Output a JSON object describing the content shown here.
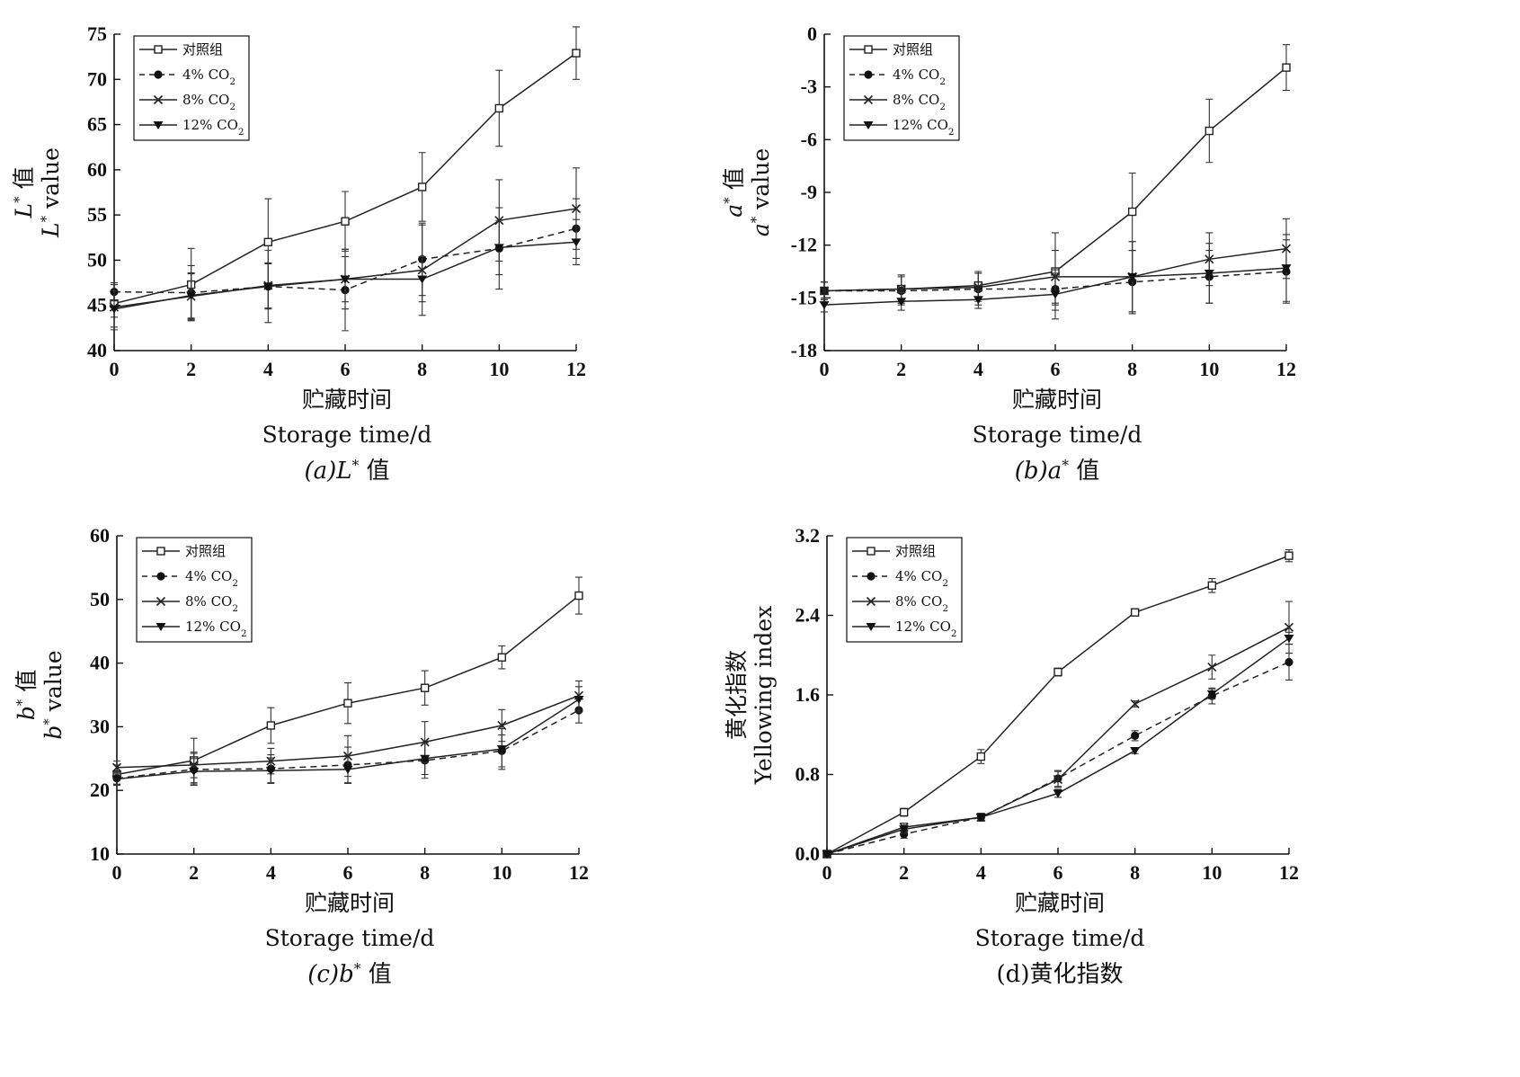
{
  "chart_data": [
    {
      "type": "line",
      "caption": "(a)L* 值",
      "xlabel": "贮藏时间",
      "xlabel_en": "Storage  time/d",
      "ylabel": "L* 值",
      "ylabel_en": "L* value",
      "xlim": [
        0,
        12
      ],
      "ylim": [
        40,
        75
      ],
      "xticks": [
        0,
        2,
        4,
        6,
        8,
        10,
        12
      ],
      "yticks": [
        40,
        45,
        50,
        55,
        60,
        65,
        70,
        75
      ],
      "legend_position": "top-left",
      "x": [
        0,
        2,
        4,
        6,
        8,
        10,
        12
      ],
      "series": [
        {
          "name": "对照组",
          "marker": "square",
          "dash": "solid",
          "values": [
            45.2,
            47.3,
            52.0,
            54.3,
            58.1,
            66.8,
            72.9
          ],
          "errors": [
            1.5,
            4.0,
            4.8,
            3.3,
            3.8,
            4.2,
            2.9
          ]
        },
        {
          "name": "4% CO2",
          "marker": "circle",
          "dash": "dashed",
          "values": [
            46.5,
            46.4,
            47.1,
            46.7,
            50.1,
            51.3,
            53.5
          ],
          "errors": [
            1.0,
            3.0,
            4.0,
            4.5,
            4.0,
            4.5,
            3.3
          ]
        },
        {
          "name": "8% CO2",
          "marker": "x",
          "dash": "solid",
          "values": [
            44.8,
            46.0,
            47.2,
            47.9,
            48.9,
            54.4,
            55.7
          ],
          "errors": [
            2.5,
            2.5,
            2.5,
            3.3,
            5.0,
            4.5,
            4.5
          ]
        },
        {
          "name": "12% CO2",
          "marker": "triangle",
          "dash": "solid",
          "values": [
            44.6,
            46.1,
            47.1,
            47.9,
            47.9,
            51.4,
            52.0
          ],
          "errors": [
            2.0,
            2.5,
            2.5,
            2.5,
            2.5,
            3.0,
            2.5
          ]
        }
      ]
    },
    {
      "type": "line",
      "caption": "(b)a* 值",
      "xlabel": "贮藏时间",
      "xlabel_en": "Storage  time/d",
      "ylabel": "a* 值",
      "ylabel_en": "a* value",
      "xlim": [
        0,
        12
      ],
      "ylim": [
        -18,
        0
      ],
      "xticks": [
        0,
        2,
        4,
        6,
        8,
        10,
        12
      ],
      "yticks": [
        -18,
        -15,
        -12,
        -9,
        -6,
        -3,
        0
      ],
      "legend_position": "top-left",
      "x": [
        0,
        2,
        4,
        6,
        8,
        10,
        12
      ],
      "series": [
        {
          "name": "对照组",
          "marker": "square",
          "dash": "solid",
          "values": [
            -14.6,
            -14.5,
            -14.3,
            -13.5,
            -10.1,
            -5.5,
            -1.9
          ],
          "errors": [
            0.5,
            0.8,
            0.8,
            2.2,
            2.2,
            1.8,
            1.3
          ]
        },
        {
          "name": "4% CO2",
          "marker": "circle",
          "dash": "dashed",
          "values": [
            -14.6,
            -14.6,
            -14.5,
            -14.5,
            -14.1,
            -13.8,
            -13.5
          ],
          "errors": [
            0.5,
            0.8,
            0.9,
            0.9,
            1.8,
            1.5,
            1.8
          ]
        },
        {
          "name": "8% CO2",
          "marker": "x",
          "dash": "solid",
          "values": [
            -14.6,
            -14.5,
            -14.4,
            -13.8,
            -13.8,
            -12.8,
            -12.2
          ],
          "errors": [
            0.5,
            0.8,
            0.8,
            1.5,
            2.0,
            1.5,
            1.7
          ]
        },
        {
          "name": "12% CO2",
          "marker": "triangle",
          "dash": "solid",
          "values": [
            -15.4,
            -15.2,
            -15.1,
            -14.8,
            -13.8,
            -13.6,
            -13.3
          ],
          "errors": [
            0.4,
            0.5,
            0.5,
            1.4,
            2.0,
            1.7,
            1.9
          ]
        }
      ]
    },
    {
      "type": "line",
      "caption": "(c)b* 值",
      "xlabel": "贮藏时间",
      "xlabel_en": "Storage  time/d",
      "ylabel": "b* 值",
      "ylabel_en": "b* value",
      "xlim": [
        0,
        12
      ],
      "ylim": [
        10,
        60
      ],
      "xticks": [
        0,
        2,
        4,
        6,
        8,
        10,
        12
      ],
      "yticks": [
        10,
        20,
        30,
        40,
        50,
        60
      ],
      "legend_position": "top-left",
      "x": [
        0,
        2,
        4,
        6,
        8,
        10,
        12
      ],
      "series": [
        {
          "name": "对照组",
          "marker": "square",
          "dash": "solid",
          "values": [
            22.5,
            24.7,
            30.2,
            33.7,
            36.1,
            40.9,
            50.6
          ],
          "errors": [
            1.5,
            3.5,
            2.8,
            3.2,
            2.7,
            1.8,
            2.9
          ]
        },
        {
          "name": "4% CO2",
          "marker": "circle",
          "dash": "dashed",
          "values": [
            21.9,
            23.3,
            23.4,
            24.0,
            24.7,
            26.2,
            32.6
          ],
          "errors": [
            1.0,
            2.5,
            2.2,
            2.8,
            2.8,
            2.5,
            2.0
          ]
        },
        {
          "name": "8% CO2",
          "marker": "x",
          "dash": "solid",
          "values": [
            23.6,
            24.0,
            24.6,
            25.4,
            27.6,
            30.2,
            34.9
          ],
          "errors": [
            1.0,
            2.0,
            2.0,
            3.2,
            3.2,
            2.5,
            2.3
          ]
        },
        {
          "name": "12% CO2",
          "marker": "triangle",
          "dash": "solid",
          "values": [
            21.8,
            23.0,
            23.1,
            23.3,
            25.0,
            26.5,
            34.3
          ],
          "errors": [
            1.0,
            2.0,
            2.0,
            2.2,
            2.5,
            3.2,
            2.0
          ]
        }
      ]
    },
    {
      "type": "line",
      "caption": "(d)黄化指数",
      "xlabel": "贮藏时间",
      "xlabel_en": "Storage  time/d",
      "ylabel": "黄化指数",
      "ylabel_en": "Yellowing  index",
      "xlim": [
        0,
        12
      ],
      "ylim": [
        0.0,
        3.2
      ],
      "xticks": [
        0,
        2,
        4,
        6,
        8,
        10,
        12
      ],
      "yticks": [
        0.0,
        0.8,
        1.6,
        2.4,
        3.2
      ],
      "legend_position": "top-left",
      "x": [
        0,
        2,
        4,
        6,
        8,
        10,
        12
      ],
      "series": [
        {
          "name": "对照组",
          "marker": "square",
          "dash": "solid",
          "values": [
            0.0,
            0.42,
            0.98,
            1.83,
            2.43,
            2.7,
            3.0
          ],
          "errors": [
            0.0,
            0.04,
            0.07,
            0.04,
            0.02,
            0.07,
            0.06
          ]
        },
        {
          "name": "4% CO2",
          "marker": "circle",
          "dash": "dashed",
          "values": [
            0.0,
            0.2,
            0.37,
            0.76,
            1.19,
            1.59,
            1.93
          ],
          "errors": [
            0.0,
            0.04,
            0.04,
            0.08,
            0.05,
            0.08,
            0.18
          ]
        },
        {
          "name": "8% CO2",
          "marker": "x",
          "dash": "solid",
          "values": [
            0.0,
            0.27,
            0.37,
            0.75,
            1.51,
            1.88,
            2.28
          ],
          "errors": [
            0.0,
            0.04,
            0.04,
            0.08,
            0.03,
            0.12,
            0.26
          ]
        },
        {
          "name": "12% CO2",
          "marker": "triangle",
          "dash": "solid",
          "values": [
            0.0,
            0.25,
            0.37,
            0.61,
            1.04,
            1.61,
            2.17
          ],
          "errors": [
            0.0,
            0.04,
            0.04,
            0.04,
            0.03,
            0.05,
            0.06
          ]
        }
      ]
    }
  ]
}
